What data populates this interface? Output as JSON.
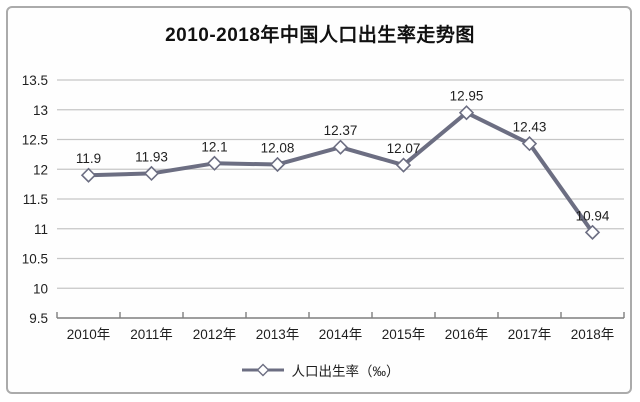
{
  "title": "2010-2018年中国人口出生率走势图",
  "legend": {
    "label": "人口出生率（‰）",
    "marker": "open-diamond"
  },
  "colors": {
    "line": "#6c6e82",
    "marker_fill": "#ffffff",
    "gridline": "#c6c6c6",
    "axis": "#7f7f7f",
    "text": "#1f1f1f",
    "title_text": "#111111",
    "panel_border": "#ababab"
  },
  "chart_data": {
    "type": "line",
    "title": "2010-2018年中国人口出生率走势图",
    "categories": [
      "2010年",
      "2011年",
      "2012年",
      "2013年",
      "2014年",
      "2015年",
      "2016年",
      "2017年",
      "2018年"
    ],
    "series": [
      {
        "name": "人口出生率（‰）",
        "values": [
          11.9,
          11.93,
          12.1,
          12.08,
          12.37,
          12.07,
          12.95,
          12.43,
          10.94
        ]
      }
    ],
    "data_labels": [
      11.9,
      11.93,
      12.1,
      12.08,
      12.37,
      12.07,
      12.95,
      12.43,
      10.94
    ],
    "xlabel": "",
    "ylabel": "",
    "ylim": [
      9.5,
      13.5
    ],
    "yticks": [
      9.5,
      10,
      10.5,
      11,
      11.5,
      12,
      12.5,
      13,
      13.5
    ],
    "grid": true,
    "legend_position": "bottom",
    "marker": "open-diamond"
  }
}
